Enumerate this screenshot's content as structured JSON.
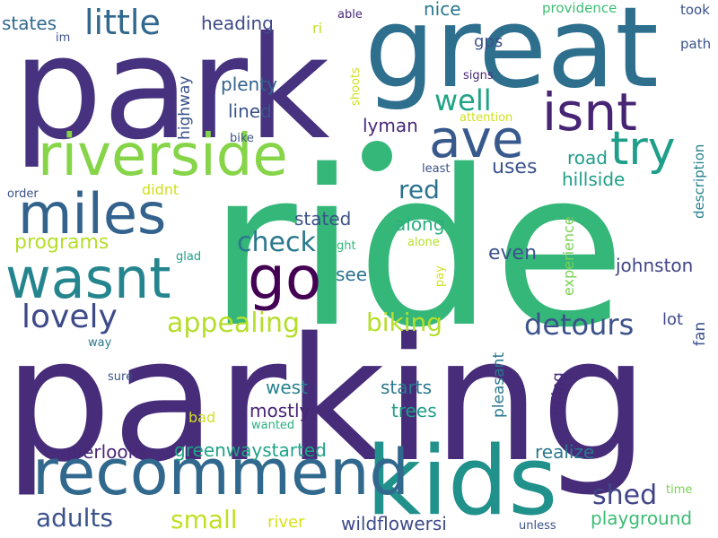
{
  "word_cloud": {
    "words": [
      {
        "text": "ride",
        "color": "#35b779",
        "orientation": "horizontal"
      },
      {
        "text": "parking",
        "color": "#472c7a",
        "orientation": "horizontal"
      },
      {
        "text": "park",
        "color": "#46327e",
        "orientation": "horizontal"
      },
      {
        "text": "great",
        "color": "#2e6f8e",
        "orientation": "horizontal"
      },
      {
        "text": "kids",
        "color": "#21918c",
        "orientation": "horizontal"
      },
      {
        "text": "recommend",
        "color": "#31688e",
        "orientation": "horizontal"
      },
      {
        "text": "riverside",
        "color": "#86d549",
        "orientation": "horizontal"
      },
      {
        "text": "miles",
        "color": "#33638d",
        "orientation": "horizontal"
      },
      {
        "text": "wasnt",
        "color": "#25858e",
        "orientation": "horizontal"
      },
      {
        "text": "go",
        "color": "#440154",
        "orientation": "horizontal"
      },
      {
        "text": "ave",
        "color": "#38598c",
        "orientation": "horizontal"
      },
      {
        "text": "isnt",
        "color": "#482475",
        "orientation": "horizontal"
      },
      {
        "text": "try",
        "color": "#1f9e89",
        "orientation": "horizontal"
      },
      {
        "text": "little",
        "color": "#31688e",
        "orientation": "horizontal"
      },
      {
        "text": "lovely",
        "color": "#3e4a89",
        "orientation": "horizontal"
      },
      {
        "text": "appealing",
        "color": "#b5de2b",
        "orientation": "horizontal"
      },
      {
        "text": "check",
        "color": "#2a788e",
        "orientation": "horizontal"
      },
      {
        "text": "detours",
        "color": "#3b528b",
        "orientation": "horizontal"
      },
      {
        "text": "biking",
        "color": "#b5de2b",
        "orientation": "horizontal"
      },
      {
        "text": "red",
        "color": "#2c728e",
        "orientation": "horizontal"
      },
      {
        "text": "well",
        "color": "#20a486",
        "orientation": "horizontal"
      },
      {
        "text": "shed",
        "color": "#414487",
        "orientation": "horizontal"
      },
      {
        "text": "adults",
        "color": "#3b528b",
        "orientation": "horizontal"
      },
      {
        "text": "small",
        "color": "#c2df23",
        "orientation": "horizontal"
      },
      {
        "text": "programs",
        "color": "#b5de2b",
        "orientation": "horizontal"
      },
      {
        "text": "heading",
        "color": "#3e4a89",
        "orientation": "horizontal"
      },
      {
        "text": "states",
        "color": "#31688e",
        "orientation": "horizontal"
      },
      {
        "text": "nice",
        "color": "#2a788e",
        "orientation": "horizontal"
      },
      {
        "text": "plenty",
        "color": "#33638d",
        "orientation": "horizontal"
      },
      {
        "text": "lined",
        "color": "#3b528b",
        "orientation": "horizontal"
      },
      {
        "text": "lyman",
        "color": "#482878",
        "orientation": "horizontal"
      },
      {
        "text": "gps",
        "color": "#3b528b",
        "orientation": "horizontal"
      },
      {
        "text": "uses",
        "color": "#3b528b",
        "orientation": "horizontal"
      },
      {
        "text": "road",
        "color": "#1f9e89",
        "orientation": "horizontal"
      },
      {
        "text": "hillside",
        "color": "#1fa088",
        "orientation": "horizontal"
      },
      {
        "text": "along",
        "color": "#2ab07f",
        "orientation": "horizontal"
      },
      {
        "text": "stated",
        "color": "#3b528b",
        "orientation": "horizontal"
      },
      {
        "text": "even",
        "color": "#3b528b",
        "orientation": "horizontal"
      },
      {
        "text": "johnston",
        "color": "#414487",
        "orientation": "horizontal"
      },
      {
        "text": "see",
        "color": "#2c728e",
        "orientation": "horizontal"
      },
      {
        "text": "west",
        "color": "#26828e",
        "orientation": "horizontal"
      },
      {
        "text": "mostly",
        "color": "#482475",
        "orientation": "horizontal"
      },
      {
        "text": "starts",
        "color": "#2a788e",
        "orientation": "horizontal"
      },
      {
        "text": "trees",
        "color": "#1f9e89",
        "orientation": "horizontal"
      },
      {
        "text": "overlooks",
        "color": "#482878",
        "orientation": "horizontal"
      },
      {
        "text": "greenwaystarted",
        "color": "#20a386",
        "orientation": "horizontal"
      },
      {
        "text": "realize",
        "color": "#2a788e",
        "orientation": "horizontal"
      },
      {
        "text": "wildflowersi",
        "color": "#3e4a89",
        "orientation": "horizontal"
      },
      {
        "text": "playground",
        "color": "#3dbc74",
        "orientation": "horizontal"
      },
      {
        "text": "river",
        "color": "#d8e219",
        "orientation": "horizontal"
      },
      {
        "text": "didnt",
        "color": "#d0e11c",
        "orientation": "horizontal"
      },
      {
        "text": "lot",
        "color": "#3e4a89",
        "orientation": "horizontal"
      },
      {
        "text": "providence",
        "color": "#3dbc74",
        "orientation": "horizontal"
      },
      {
        "text": "took",
        "color": "#3b528b",
        "orientation": "horizontal"
      },
      {
        "text": "path",
        "color": "#3b528b",
        "orientation": "horizontal"
      },
      {
        "text": "signs",
        "color": "#482878",
        "orientation": "horizontal"
      },
      {
        "text": "attention",
        "color": "#d0e11c",
        "orientation": "horizontal"
      },
      {
        "text": "least",
        "color": "#3b528b",
        "orientation": "horizontal"
      },
      {
        "text": "able",
        "color": "#482878",
        "orientation": "horizontal"
      },
      {
        "text": "ri",
        "color": "#c2df23",
        "orientation": "horizontal"
      },
      {
        "text": "im",
        "color": "#3b528b",
        "orientation": "horizontal"
      },
      {
        "text": "bike",
        "color": "#3b528b",
        "orientation": "horizontal"
      },
      {
        "text": "order",
        "color": "#3b528b",
        "orientation": "horizontal"
      },
      {
        "text": "glad",
        "color": "#1f9e89",
        "orientation": "horizontal"
      },
      {
        "text": "right",
        "color": "#35b779",
        "orientation": "horizontal"
      },
      {
        "text": "alone",
        "color": "#b5de2b",
        "orientation": "horizontal"
      },
      {
        "text": "way",
        "color": "#2a788e",
        "orientation": "horizontal"
      },
      {
        "text": "sure",
        "color": "#3b528b",
        "orientation": "horizontal"
      },
      {
        "text": "bad",
        "color": "#d0e11c",
        "orientation": "horizontal"
      },
      {
        "text": "wanted",
        "color": "#2ab07f",
        "orientation": "horizontal"
      },
      {
        "text": "unless",
        "color": "#3b528b",
        "orientation": "horizontal"
      },
      {
        "text": "time",
        "color": "#7ad151",
        "orientation": "horizontal"
      },
      {
        "text": "highway",
        "color": "#3b528b",
        "orientation": "vertical"
      },
      {
        "text": "shoots",
        "color": "#d0e11c",
        "orientation": "vertical"
      },
      {
        "text": "description",
        "color": "#26828e",
        "orientation": "vertical"
      },
      {
        "text": "experience",
        "color": "#7ad151",
        "orientation": "vertical"
      },
      {
        "text": "pleasant",
        "color": "#2a788e",
        "orientation": "vertical"
      },
      {
        "text": "riding",
        "color": "#482878",
        "orientation": "vertical"
      },
      {
        "text": "fan",
        "color": "#3b528b",
        "orientation": "vertical"
      },
      {
        "text": "pay",
        "color": "#d0e11c",
        "orientation": "vertical"
      }
    ]
  }
}
